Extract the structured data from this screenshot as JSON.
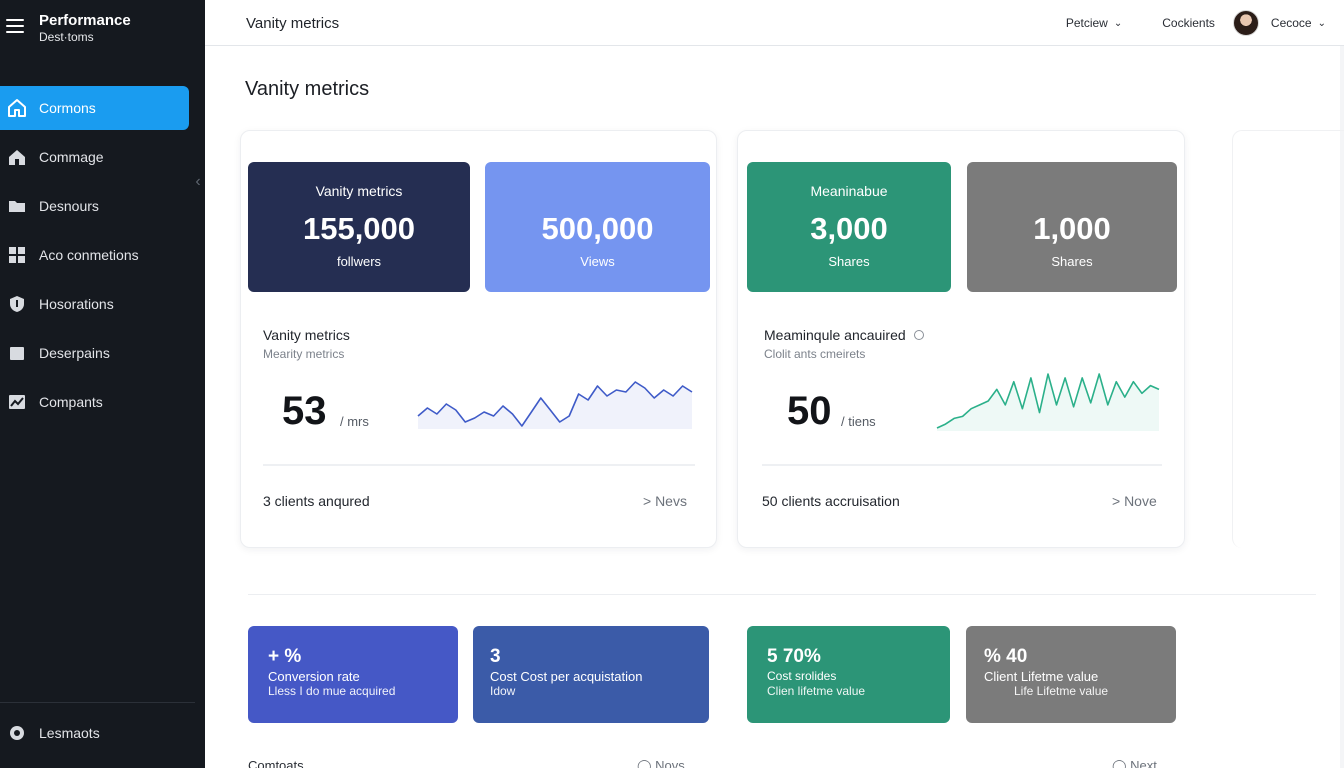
{
  "sidebar": {
    "brand_title": "Performance",
    "brand_sub": "Dest·toms",
    "items": [
      {
        "label": "Cormons",
        "icon": "home-icon",
        "active": true
      },
      {
        "label": "Commage",
        "icon": "house-icon",
        "active": false
      },
      {
        "label": "Desnours",
        "icon": "folder-icon",
        "active": false
      },
      {
        "label": "Aco conmetions",
        "icon": "grid-icon",
        "active": false
      },
      {
        "label": "Hosorations",
        "icon": "shield-icon",
        "active": false
      },
      {
        "label": "Deserpains",
        "icon": "document-icon",
        "active": false
      },
      {
        "label": "Compants",
        "icon": "chart-icon",
        "active": false
      }
    ],
    "footer_label": "Lesmaots"
  },
  "topbar": {
    "title": "Vanity metrics",
    "menu1": "Petciew",
    "menu2": "Cockients",
    "menu3": "Cecoce"
  },
  "page": {
    "title": "Vanity metrics"
  },
  "vanity": {
    "tile1": {
      "label": "Vanity metrics",
      "value": "155,000",
      "unit": "follwers",
      "color": "#252e52"
    },
    "tile2": {
      "label": "",
      "value": "500,000",
      "unit": "Views",
      "color": "#7595f0"
    },
    "section_title": "Vanity metrics",
    "section_sub": "Mearity metrics",
    "big_number": "53",
    "big_unit": "/ mrs",
    "footer_label": "3 clients anqured",
    "footer_link": "> Nevs",
    "sparkline_color": "#3f5bc8",
    "sparkline": [
      9,
      13,
      10,
      15,
      12,
      6,
      8,
      11,
      9,
      14,
      10,
      4,
      11,
      18,
      12,
      6,
      9,
      20,
      17,
      24,
      19,
      22,
      21,
      26,
      23,
      18,
      22,
      19,
      24,
      21
    ]
  },
  "meaningful": {
    "tile1": {
      "label": "Meaninabue",
      "value": "3,000",
      "unit": "Shares",
      "color": "#2c9577"
    },
    "tile2": {
      "label": "",
      "value": "1,000",
      "unit": "Shares",
      "color": "#7b7b7b"
    },
    "section_title": "Meaminqule ancauired",
    "section_sub": "Clolit ants cmeirets",
    "big_number": "50",
    "big_unit": "/ tiens",
    "footer_label": "50 clients accruisation",
    "footer_link": "> Nove",
    "sparkline_color": "#2bb08a",
    "sparkline": [
      2,
      4,
      7,
      8,
      12,
      14,
      16,
      22,
      14,
      26,
      12,
      28,
      10,
      30,
      14,
      28,
      13,
      28,
      15,
      30,
      14,
      26,
      18,
      26,
      20,
      24,
      22
    ]
  },
  "kpis": [
    {
      "value": "+ %",
      "line1": "Conversion rate",
      "line2": "Lless I do mue acquired",
      "color": "#4558c6"
    },
    {
      "value": "3",
      "line1": "Cost Cost per acquistation",
      "line2": "Idow",
      "color": "#3b5ba8"
    },
    {
      "value": "5 70%",
      "line1": "Cost srolides",
      "line2": "Clien lifetme value",
      "color": "#2c9577"
    },
    {
      "value": "% 40",
      "line1": "Client Lifetme value",
      "line2": "Life Lifetme value",
      "color": "#7b7b7b"
    }
  ],
  "bottom": {
    "label": "Comtoats",
    "link1": "◯ Novs",
    "link2": "◯ Next"
  }
}
